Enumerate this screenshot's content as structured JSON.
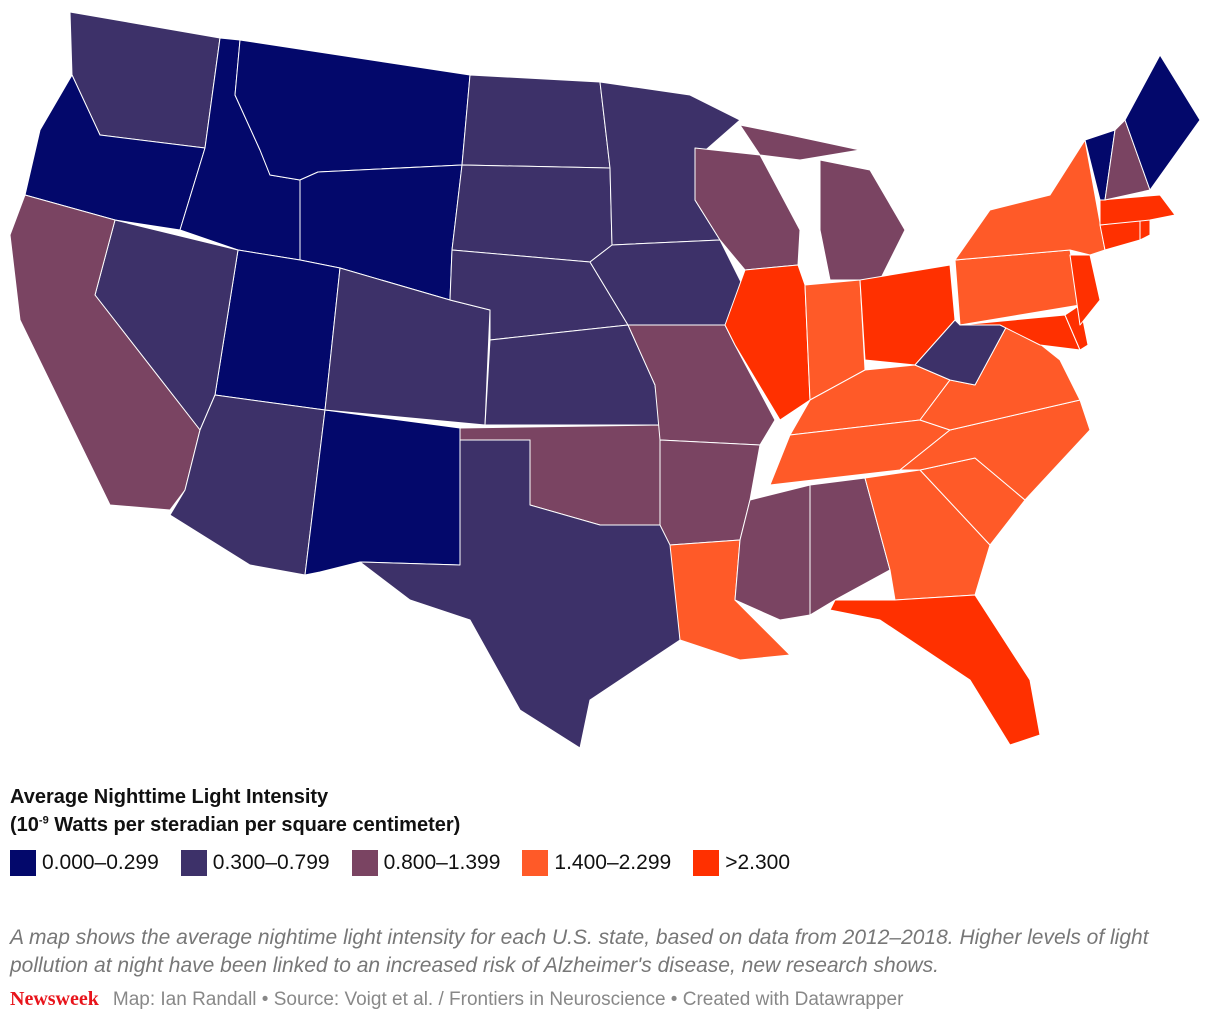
{
  "title": "Average Nighttime Light Intensity",
  "subtitle_prefix": "(10",
  "subtitle_exponent": "-9",
  "subtitle_suffix": " Watts per steradian per square centimeter)",
  "legend": [
    {
      "label": "0.000–0.299",
      "color": "#03086b"
    },
    {
      "label": "0.300–0.799",
      "color": "#3d3169"
    },
    {
      "label": "0.800–1.399",
      "color": "#7a4462"
    },
    {
      "label": "1.400–2.299",
      "color": "#ff5a28"
    },
    {
      "label": ">2.300",
      "color": "#ff3000"
    }
  ],
  "states": [
    1,
    0,
    0,
    0,
    0,
    0,
    1,
    2,
    1,
    0,
    1,
    1,
    1,
    1,
    1,
    2,
    1,
    1,
    1,
    2,
    2,
    3,
    2,
    4,
    2,
    3,
    4,
    3,
    3,
    2,
    2,
    3,
    4,
    3,
    3,
    3,
    1,
    3,
    3,
    4,
    4,
    4,
    4,
    4,
    4,
    0,
    2,
    0
  ],
  "caption": "A map shows the average nightime light intensity for each U.S. state, based on data from 2012–2018. Higher levels of light pollution at night have been linked to an increased risk of Alzheimer's disease, new research shows.",
  "logo": "Newsweek",
  "credits": "Map: Ian Randall • Source: Voigt et al. / Frontiers in Neuroscience • Created with Datawrapper"
}
